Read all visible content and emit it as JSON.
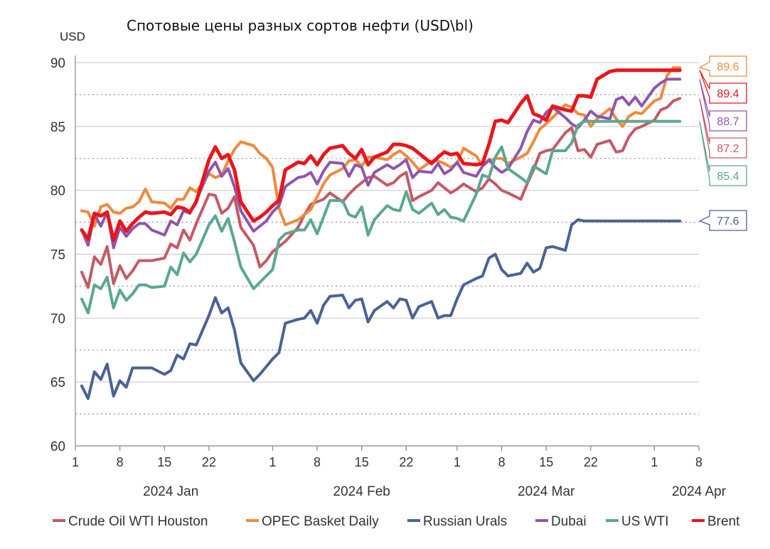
{
  "title": "Спотовые цены разных сортов нефти (USD\\bl)",
  "unit_label": "USD",
  "chart_data": {
    "type": "line",
    "title": "Спотовые цены разных сортов нефти (USD\\bl)",
    "ylabel": "USD",
    "xlabel": "",
    "ylim": [
      60,
      90
    ],
    "yticks": [
      60,
      65,
      70,
      75,
      80,
      85,
      90
    ],
    "dotted_gridlines": [
      62.5,
      67.5,
      72.5,
      77.5,
      82.5,
      87.5
    ],
    "x_start": "2024-01-01",
    "x_end": "2024-04-08",
    "x_ticks": [
      {
        "date": "2024-01-01",
        "label": "1"
      },
      {
        "date": "2024-01-08",
        "label": "8"
      },
      {
        "date": "2024-01-15",
        "label": "15"
      },
      {
        "date": "2024-01-22",
        "label": "22"
      },
      {
        "date": "2024-02-01",
        "label": "1"
      },
      {
        "date": "2024-02-08",
        "label": "8"
      },
      {
        "date": "2024-02-15",
        "label": "15"
      },
      {
        "date": "2024-02-22",
        "label": "22"
      },
      {
        "date": "2024-03-01",
        "label": "1"
      },
      {
        "date": "2024-03-08",
        "label": "8"
      },
      {
        "date": "2024-03-15",
        "label": "15"
      },
      {
        "date": "2024-03-22",
        "label": "22"
      },
      {
        "date": "2024-04-01",
        "label": "1"
      },
      {
        "date": "2024-04-08",
        "label": "8"
      }
    ],
    "month_labels": [
      {
        "date": "2024-01-16",
        "label": "2024 Jan"
      },
      {
        "date": "2024-02-15",
        "label": "2024 Feb"
      },
      {
        "date": "2024-03-15",
        "label": "2024 Mar"
      },
      {
        "date": "2024-04-08",
        "label": "2024 Apr"
      }
    ],
    "dates": [
      "2024-01-02",
      "2024-01-03",
      "2024-01-04",
      "2024-01-05",
      "2024-01-06",
      "2024-01-07",
      "2024-01-08",
      "2024-01-09",
      "2024-01-10",
      "2024-01-11",
      "2024-01-12",
      "2024-01-13",
      "2024-01-15",
      "2024-01-16",
      "2024-01-17",
      "2024-01-18",
      "2024-01-19",
      "2024-01-20",
      "2024-01-22",
      "2024-01-23",
      "2024-01-24",
      "2024-01-25",
      "2024-01-26",
      "2024-01-27",
      "2024-01-29",
      "2024-01-30",
      "2024-01-31",
      "2024-02-01",
      "2024-02-02",
      "2024-02-03",
      "2024-02-05",
      "2024-02-06",
      "2024-02-07",
      "2024-02-08",
      "2024-02-09",
      "2024-02-10",
      "2024-02-12",
      "2024-02-13",
      "2024-02-14",
      "2024-02-15",
      "2024-02-16",
      "2024-02-17",
      "2024-02-19",
      "2024-02-20",
      "2024-02-21",
      "2024-02-22",
      "2024-02-23",
      "2024-02-24",
      "2024-02-26",
      "2024-02-27",
      "2024-02-28",
      "2024-02-29",
      "2024-03-01",
      "2024-03-02",
      "2024-03-04",
      "2024-03-05",
      "2024-03-06",
      "2024-03-07",
      "2024-03-08",
      "2024-03-09",
      "2024-03-11",
      "2024-03-12",
      "2024-03-13",
      "2024-03-14",
      "2024-03-15",
      "2024-03-16",
      "2024-03-18",
      "2024-03-19",
      "2024-03-20",
      "2024-03-21",
      "2024-03-22",
      "2024-03-23",
      "2024-03-25",
      "2024-03-26",
      "2024-03-27",
      "2024-03-28",
      "2024-03-29",
      "2024-03-30",
      "2024-04-01",
      "2024-04-02",
      "2024-04-03",
      "2024-04-04",
      "2024-04-05"
    ],
    "series": [
      {
        "name": "Crude Oil WTI Houston",
        "color": "#c55a66",
        "width": 4,
        "values": [
          73.6,
          72.4,
          74.8,
          74.2,
          75.6,
          72.7,
          74.1,
          73.1,
          73.7,
          74.5,
          74.5,
          74.5,
          74.7,
          75.8,
          75.5,
          76.9,
          76.1,
          77.4,
          79.7,
          79.6,
          78.2,
          78.6,
          79.5,
          77.1,
          75.7,
          74.0,
          74.5,
          75.2,
          75.6,
          76.0,
          77.1,
          78.1,
          78.9,
          79.1,
          79.3,
          79.8,
          79.1,
          79.7,
          80.2,
          80.6,
          81.0,
          81.1,
          80.4,
          80.6,
          81.1,
          81.4,
          79.2,
          79.5,
          80.0,
          80.6,
          80.2,
          79.8,
          80.1,
          80.5,
          79.9,
          80.2,
          80.9,
          80.5,
          80.0,
          79.8,
          79.3,
          80.5,
          81.6,
          82.9,
          83.1,
          83.2,
          84.5,
          84.9,
          83.1,
          83.2,
          82.6,
          83.6,
          83.9,
          83.0,
          83.1,
          84.2,
          84.8,
          85.0,
          85.5,
          86.3,
          86.5,
          87.0,
          87.2
        ]
      },
      {
        "name": "OPEC Basket Daily",
        "color": "#ef8a3c",
        "width": 4,
        "values": [
          78.4,
          78.3,
          77.2,
          78.7,
          78.9,
          78.3,
          78.2,
          78.6,
          78.7,
          79.1,
          80.1,
          79.1,
          79.0,
          78.6,
          79.3,
          79.3,
          80.2,
          79.9,
          81.3,
          81.0,
          81.2,
          82.3,
          83.2,
          83.8,
          83.5,
          82.9,
          82.5,
          81.8,
          78.6,
          77.3,
          77.7,
          78.1,
          78.5,
          79.5,
          80.5,
          81.2,
          81.7,
          82.3,
          82.4,
          81.9,
          82.6,
          82.6,
          82.4,
          82.8,
          83.1,
          82.7,
          82.2,
          81.6,
          82.3,
          82.3,
          82.1,
          81.8,
          82.1,
          83.3,
          82.7,
          81.9,
          82.3,
          82.5,
          82.5,
          82.1,
          82.6,
          82.9,
          83.8,
          84.8,
          85.2,
          85.7,
          86.7,
          86.5,
          86.0,
          85.9,
          85.0,
          85.6,
          86.4,
          85.6,
          85.0,
          85.8,
          86.1,
          86.0,
          87.0,
          87.2,
          89.0,
          89.6,
          89.6
        ]
      },
      {
        "name": "Russian Urals",
        "color": "#4a6296",
        "width": 4,
        "values": [
          64.7,
          63.7,
          65.8,
          65.2,
          66.4,
          63.9,
          65.1,
          64.6,
          66.1,
          66.1,
          66.1,
          66.1,
          65.6,
          65.9,
          67.1,
          66.8,
          68.0,
          67.9,
          70.2,
          71.6,
          70.4,
          70.8,
          69.1,
          66.5,
          65.1,
          65.6,
          66.2,
          66.8,
          67.3,
          69.6,
          69.9,
          70.0,
          70.6,
          69.6,
          71.0,
          71.7,
          71.8,
          70.8,
          71.4,
          71.5,
          69.7,
          70.6,
          71.3,
          70.8,
          71.5,
          71.4,
          70.0,
          70.9,
          71.3,
          70.0,
          70.2,
          70.2,
          71.5,
          72.6,
          73.1,
          73.3,
          74.7,
          75.0,
          73.8,
          73.3,
          73.5,
          74.3,
          73.6,
          73.9,
          75.5,
          75.6,
          75.3,
          77.3,
          77.7,
          77.6,
          77.6,
          77.6,
          77.6,
          77.6,
          77.6,
          77.6,
          77.6,
          77.6,
          77.6,
          77.6,
          77.6,
          77.6,
          77.6
        ]
      },
      {
        "name": "Dubai",
        "color": "#9155ad",
        "width": 4,
        "values": [
          76.9,
          75.7,
          78.1,
          77.2,
          78.3,
          75.5,
          77.1,
          76.4,
          77.0,
          77.4,
          77.4,
          76.9,
          76.5,
          77.6,
          77.3,
          78.4,
          78.2,
          79.2,
          81.5,
          82.2,
          81.1,
          81.7,
          80.3,
          78.4,
          76.8,
          77.2,
          77.6,
          78.3,
          78.8,
          80.3,
          81.0,
          81.1,
          81.4,
          80.5,
          81.5,
          82.2,
          82.1,
          81.1,
          82.0,
          81.8,
          80.4,
          81.4,
          82.0,
          81.7,
          82.0,
          82.4,
          81.0,
          81.5,
          81.4,
          82.1,
          81.3,
          81.6,
          82.2,
          81.4,
          81.1,
          81.9,
          82.4,
          81.8,
          81.4,
          81.7,
          83.3,
          84.6,
          85.5,
          85.3,
          86.1,
          86.5,
          85.7,
          85.2,
          84.9,
          85.5,
          86.2,
          85.8,
          85.6,
          87.1,
          87.3,
          86.7,
          87.3,
          86.6,
          88.0,
          88.4,
          88.7,
          88.7,
          88.7
        ]
      },
      {
        "name": "US WTI",
        "color": "#5aa890",
        "width": 4,
        "values": [
          71.5,
          70.4,
          72.6,
          72.3,
          73.2,
          70.8,
          72.2,
          71.4,
          71.9,
          72.6,
          72.6,
          72.4,
          72.5,
          74.0,
          73.4,
          75.1,
          74.4,
          75.0,
          77.3,
          78.0,
          76.8,
          77.8,
          76.0,
          74.0,
          72.3,
          72.8,
          73.3,
          73.8,
          76.1,
          76.6,
          76.9,
          76.9,
          77.7,
          76.6,
          77.9,
          79.2,
          79.2,
          78.1,
          77.9,
          78.7,
          76.5,
          77.7,
          78.8,
          78.5,
          78.4,
          79.9,
          78.5,
          78.2,
          79.0,
          78.1,
          78.5,
          77.9,
          77.8,
          77.6,
          79.7,
          81.2,
          81.0,
          82.6,
          83.4,
          81.7,
          81.0,
          80.6,
          81.9,
          81.6,
          81.3,
          83.1,
          83.1,
          83.7,
          85.1,
          85.4,
          85.4,
          85.4,
          85.4,
          85.4,
          85.4,
          85.4,
          85.4,
          85.4,
          85.4,
          85.4,
          85.4,
          85.4,
          85.4
        ]
      },
      {
        "name": "Brent",
        "color": "#e8161c",
        "width": 5,
        "values": [
          76.9,
          76.2,
          78.2,
          78.0,
          78.3,
          76.1,
          77.6,
          76.8,
          77.4,
          77.9,
          78.3,
          78.2,
          78.3,
          78.1,
          78.7,
          78.6,
          78.3,
          79.1,
          82.4,
          83.4,
          82.5,
          82.8,
          81.6,
          79.1,
          77.6,
          77.9,
          78.3,
          78.8,
          79.2,
          81.6,
          82.2,
          82.1,
          82.7,
          82.0,
          82.8,
          83.3,
          83.5,
          82.9,
          82.5,
          83.2,
          82.0,
          82.6,
          83.0,
          83.6,
          83.6,
          83.5,
          83.3,
          82.9,
          82.1,
          82.6,
          83.0,
          82.8,
          82.9,
          82.1,
          82.0,
          82.1,
          83.6,
          85.4,
          85.5,
          85.3,
          86.8,
          87.4,
          86.0,
          85.8,
          85.5,
          86.6,
          86.3,
          86.2,
          87.4,
          87.4,
          87.3,
          88.7,
          89.3,
          89.4,
          89.4,
          89.4,
          89.4,
          89.4,
          89.4,
          89.4,
          89.4,
          89.4,
          89.4
        ]
      }
    ],
    "end_labels": [
      {
        "text": "89.6",
        "value": 89.6,
        "color": "#ef8a3c"
      },
      {
        "text": "89.4",
        "value": 89.4,
        "color": "#e8161c"
      },
      {
        "text": "88.7",
        "value": 88.7,
        "color": "#9155ad"
      },
      {
        "text": "87.2",
        "value": 87.2,
        "color": "#c55a66"
      },
      {
        "text": "85.4",
        "value": 85.4,
        "color": "#5aa890"
      },
      {
        "text": "77.6",
        "value": 77.6,
        "color": "#4a6296"
      }
    ],
    "legend": {
      "position": "bottom",
      "items": [
        {
          "label": "Crude Oil WTI Houston",
          "color": "#c55a66"
        },
        {
          "label": "OPEC Basket Daily",
          "color": "#ef8a3c"
        },
        {
          "label": "Russian Urals",
          "color": "#4a6296"
        },
        {
          "label": "Dubai",
          "color": "#9155ad"
        },
        {
          "label": "US WTI",
          "color": "#5aa890"
        },
        {
          "label": "Brent",
          "color": "#e8161c"
        }
      ]
    }
  }
}
